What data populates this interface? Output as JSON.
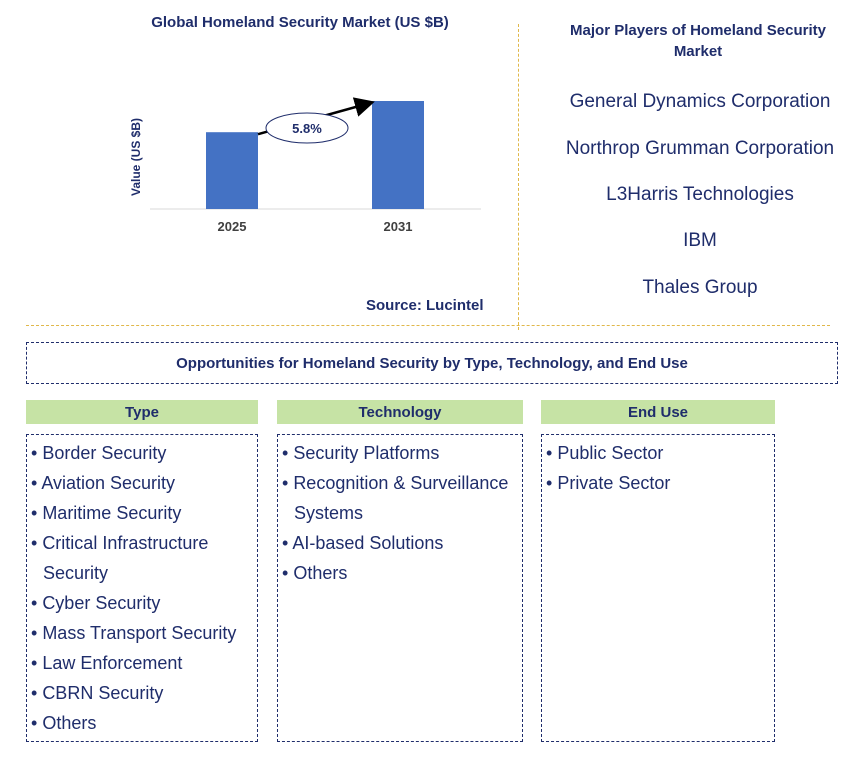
{
  "chart_data": {
    "type": "bar",
    "title": "Global Homeland Security Market (US $B)",
    "categories": [
      "2025",
      "2031"
    ],
    "values": [
      3.2,
      4.5
    ],
    "ylabel": "Value (US $B)",
    "xlabel": "",
    "ylim": [
      0,
      5
    ],
    "annotation": "5.8%",
    "source": "Source: Lucintel",
    "bar_color": "#4472c4"
  },
  "players": {
    "title": "Major Players of Homeland Security Market",
    "items": [
      "General Dynamics Corporation",
      "Northrop Grumman Corporation",
      "L3Harris Technologies",
      "IBM",
      "Thales Group"
    ]
  },
  "opportunities": {
    "title": "Opportunities for Homeland Security by Type, Technology, and End Use",
    "columns": [
      {
        "header": "Type",
        "items": [
          "Border Security",
          "Aviation Security",
          "Maritime Security",
          "Critical Infrastructure Security",
          "Cyber Security",
          "Mass Transport Security",
          "Law Enforcement",
          "CBRN Security",
          "Others"
        ]
      },
      {
        "header": "Technology",
        "items": [
          "Security Platforms",
          "Recognition & Surveillance Systems",
          "AI-based Solutions",
          "Others"
        ]
      },
      {
        "header": "End Use",
        "items": [
          "Public Sector",
          "Private Sector"
        ]
      }
    ]
  },
  "colors": {
    "text": "#1f2d6b",
    "header_bg": "#c6e3a5",
    "divider": "#e0b84a"
  }
}
